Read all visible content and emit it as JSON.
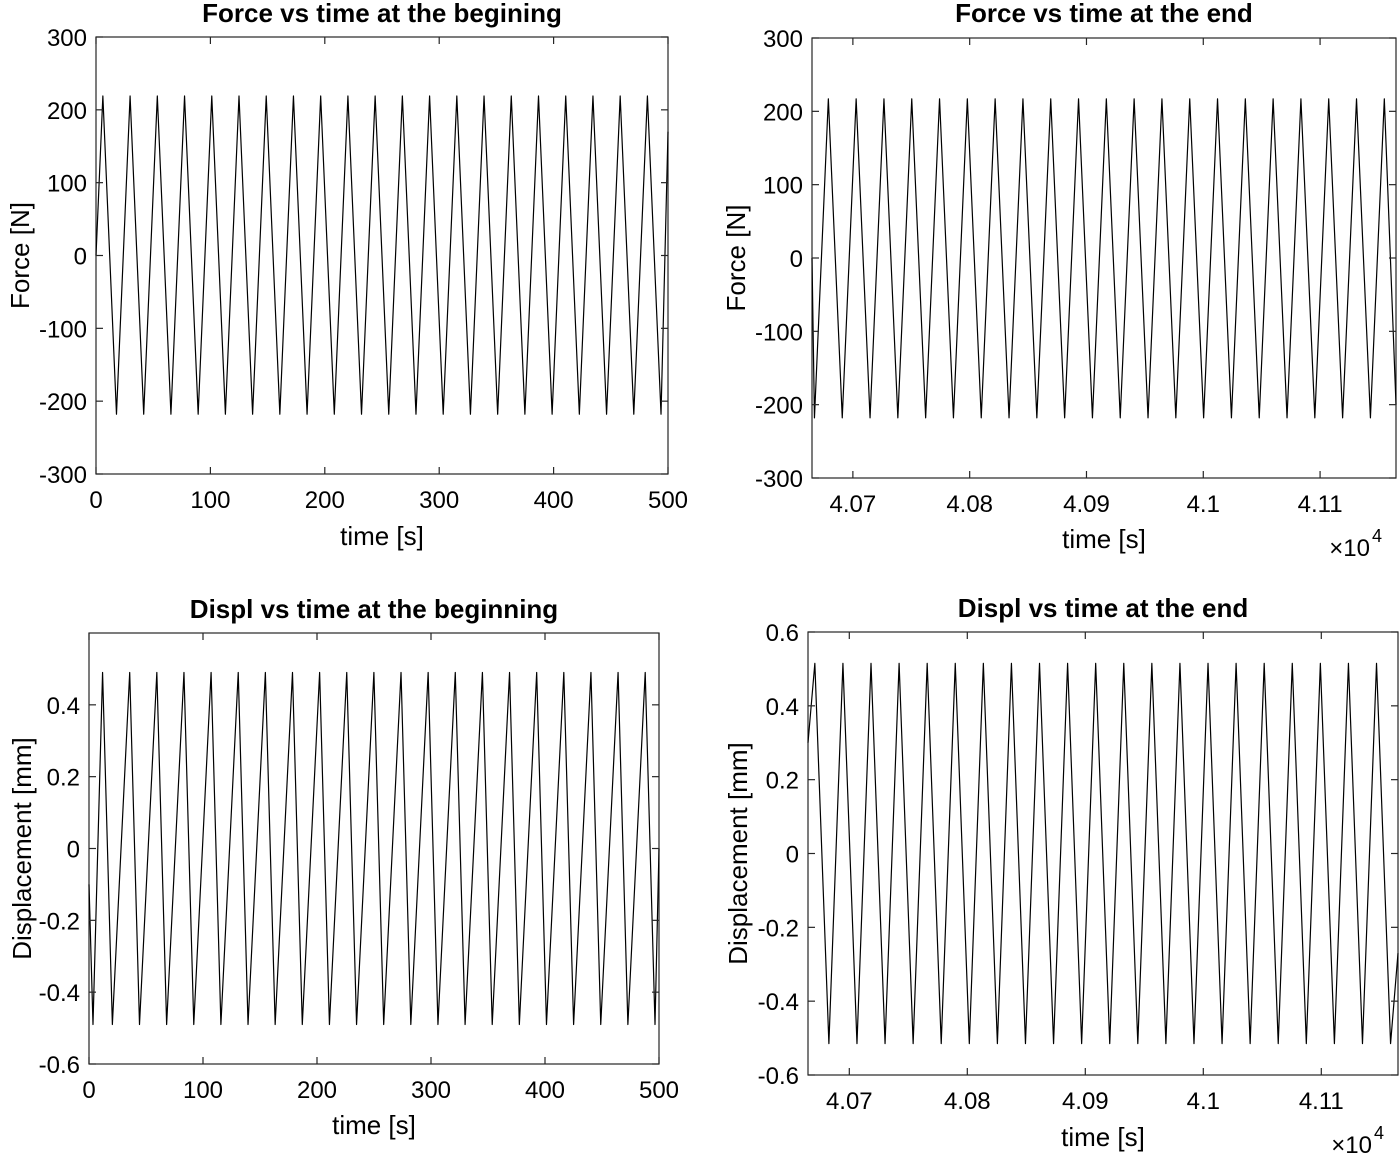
{
  "chart_data": [
    {
      "type": "line",
      "title": "Force vs time at the begining",
      "xlabel": "time [s]",
      "ylabel": "Force [N]",
      "xlim": [
        0,
        500
      ],
      "ylim": [
        -300,
        300
      ],
      "xticks": [
        0,
        100,
        200,
        300,
        400,
        500
      ],
      "xtick_labels": [
        "0",
        "100",
        "200",
        "300",
        "400",
        "500"
      ],
      "yticks": [
        300,
        200,
        100,
        0,
        -100,
        -200,
        -300
      ],
      "ytick_labels": [
        "300",
        "200",
        "100",
        "0",
        "-100",
        "-200",
        "-300"
      ],
      "x_exponent_label": "",
      "grid": false,
      "series": [
        {
          "peaks_x": [
            6,
            29.8,
            53.6,
            77.4,
            101.2,
            125,
            148.8,
            172.6,
            196.4,
            220.2,
            244,
            267.8,
            291.6,
            315.4,
            339.2,
            363,
            386.8,
            410.6,
            434.4,
            458.2,
            482
          ],
          "peak_value": 219,
          "troughs_x": [
            17.9,
            41.7,
            65.5,
            89.3,
            113.1,
            136.9,
            160.7,
            184.5,
            208.3,
            232.1,
            255.9,
            279.7,
            303.5,
            327.3,
            351.1,
            374.9,
            398.7,
            422.5,
            446.3,
            470.1,
            493.9
          ],
          "trough_value": -218,
          "start": [
            0,
            0
          ],
          "end": [
            500,
            170
          ]
        }
      ]
    },
    {
      "type": "line",
      "title": "Force vs time at the end",
      "xlabel": "time [s]",
      "ylabel": "Force [N]",
      "xlim": [
        40665,
        41165
      ],
      "ylim": [
        -300,
        300
      ],
      "xticks": [
        40700,
        40800,
        40900,
        41000,
        41100
      ],
      "xtick_labels": [
        "4.07",
        "4.08",
        "4.09",
        "4.1",
        "4.11"
      ],
      "yticks": [
        300,
        200,
        100,
        0,
        -100,
        -200,
        -300
      ],
      "ytick_labels": [
        "300",
        "200",
        "100",
        "0",
        "-100",
        "-200",
        "-300"
      ],
      "x_exponent_label": "×10",
      "x_exponent_power": "4",
      "grid": false,
      "series": [
        {
          "peaks_x": [
            40679,
            40702.8,
            40726.6,
            40750.4,
            40774.2,
            40798,
            40821.8,
            40845.6,
            40869.4,
            40893.2,
            40917,
            40940.8,
            40964.6,
            40988.4,
            41012.2,
            41036,
            41059.8,
            41083.6,
            41107.4,
            41131.2,
            41155
          ],
          "peak_value": 217,
          "troughs_x": [
            40667.1,
            40690.9,
            40714.7,
            40738.5,
            40762.3,
            40786.1,
            40809.9,
            40833.7,
            40857.5,
            40881.3,
            40905.1,
            40928.9,
            40952.7,
            40976.5,
            41000.3,
            41024.1,
            41047.9,
            41071.7,
            41095.5,
            41119.3,
            41143.1
          ],
          "trough_value": -218,
          "start": [
            40665,
            0
          ],
          "end": [
            41165,
            -200
          ]
        }
      ]
    },
    {
      "type": "line",
      "title": "Displ vs time at the beginning",
      "xlabel": "time [s]",
      "ylabel": "Displacement [mm]",
      "xlim": [
        0,
        500
      ],
      "ylim": [
        -0.6,
        0.6
      ],
      "xticks": [
        0,
        100,
        200,
        300,
        400,
        500
      ],
      "xtick_labels": [
        "0",
        "100",
        "200",
        "300",
        "400",
        "500"
      ],
      "yticks": [
        0.4,
        0.2,
        0,
        -0.2,
        -0.4,
        -0.6
      ],
      "ytick_labels": [
        "0.4",
        "0.2",
        "0",
        "-0.2",
        "-0.4",
        "-0.6"
      ],
      "x_exponent_label": "",
      "grid": false,
      "series": [
        {
          "peaks_x": [
            11.9,
            35.7,
            59.5,
            83.3,
            107.1,
            130.9,
            154.7,
            178.5,
            202.3,
            226.1,
            249.9,
            273.7,
            297.5,
            321.3,
            345.1,
            368.9,
            392.7,
            416.5,
            440.3,
            464.1,
            487.9
          ],
          "peak_value": 0.49,
          "troughs_x": [
            3.5,
            20.5,
            44.3,
            68.1,
            91.9,
            115.7,
            139.5,
            163.3,
            187.1,
            210.9,
            234.7,
            258.5,
            282.3,
            306.1,
            329.9,
            353.7,
            377.5,
            401.3,
            425.1,
            448.9,
            472.7,
            496.5
          ],
          "trough_value": -0.49,
          "start": [
            0,
            -0.1
          ],
          "end": [
            500,
            0
          ]
        }
      ]
    },
    {
      "type": "line",
      "title": "Displ vs time at the end",
      "xlabel": "time [s]",
      "ylabel": "Displacement [mm]",
      "xlim": [
        40665,
        41165
      ],
      "ylim": [
        -0.6,
        0.6
      ],
      "xticks": [
        40700,
        40800,
        40900,
        41000,
        41100
      ],
      "xtick_labels": [
        "4.07",
        "4.08",
        "4.09",
        "4.1",
        "4.11"
      ],
      "yticks": [
        0.6,
        0.4,
        0.2,
        0,
        -0.2,
        -0.4,
        -0.6
      ],
      "ytick_labels": [
        "0.6",
        "0.4",
        "0.2",
        "0",
        "-0.2",
        "-0.4",
        "-0.6"
      ],
      "x_exponent_label": "×10",
      "x_exponent_power": "4",
      "grid": false,
      "series": [
        {
          "peaks_x": [
            40670.8,
            40694.6,
            40718.4,
            40742.2,
            40766,
            40789.8,
            40813.6,
            40837.4,
            40861.2,
            40885,
            40908.8,
            40932.6,
            40956.4,
            40980.2,
            41004,
            41027.8,
            41051.6,
            41075.4,
            41099.2,
            41123,
            41146.8
          ],
          "peak_value": 0.515,
          "troughs_x": [
            40682.7,
            40706.5,
            40730.3,
            40754.1,
            40777.9,
            40801.7,
            40825.5,
            40849.3,
            40873.1,
            40896.9,
            40920.7,
            40944.5,
            40968.3,
            40992.1,
            41015.9,
            41039.7,
            41063.5,
            41087.3,
            41111.1,
            41134.9,
            41158.7
          ],
          "trough_value": -0.515,
          "start": [
            40665,
            0.3
          ],
          "end": [
            41165,
            -0.27
          ]
        }
      ]
    }
  ]
}
